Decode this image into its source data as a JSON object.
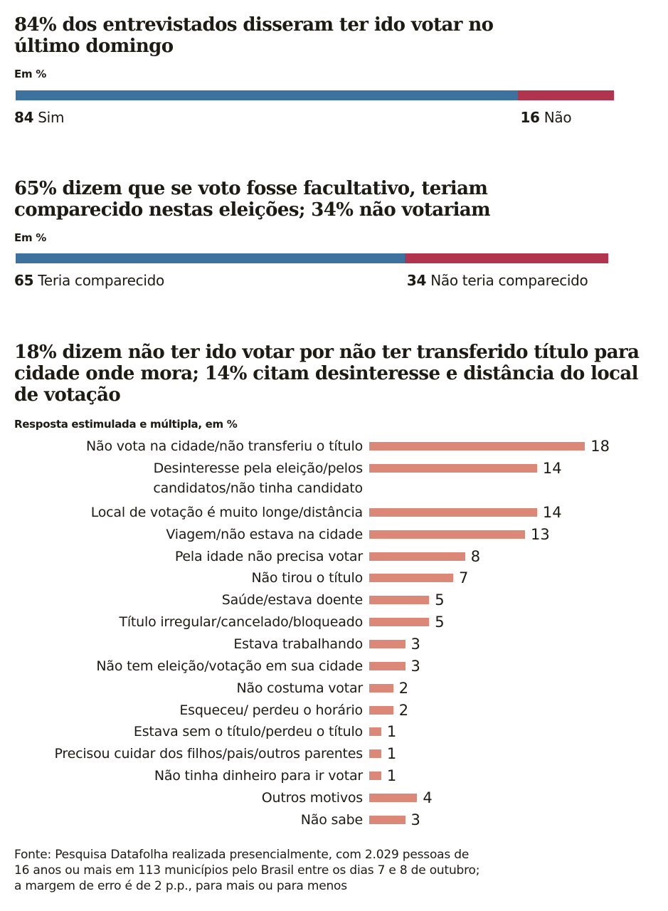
{
  "chart_data": [
    {
      "type": "bar",
      "orientation": "horizontal-stacked",
      "title": "84% dos entrevistados disseram ter ido votar no último domingo",
      "subtitle": "Em %",
      "series": [
        {
          "name": "Sim",
          "values": [
            84
          ]
        },
        {
          "name": "Não",
          "values": [
            16
          ]
        }
      ],
      "colors": [
        "#3d729f",
        "#b1344f"
      ]
    },
    {
      "type": "bar",
      "orientation": "horizontal-stacked",
      "title": "65% dizem que se voto fosse facultativo, teriam comparecido nestas eleições; 34% não votariam",
      "subtitle": "Em %",
      "series": [
        {
          "name": "Teria comparecido",
          "values": [
            65
          ]
        },
        {
          "name": "Não teria comparecido",
          "values": [
            34
          ]
        }
      ],
      "colors": [
        "#3d729f",
        "#b1344f"
      ]
    },
    {
      "type": "bar",
      "orientation": "horizontal",
      "title": "18% dizem não ter ido votar por não ter transferido título para cidade onde mora; 14% citam desinteresse e distância do local de votação",
      "subtitle": "Resposta estimulada e múltipla, em %",
      "color": "#db8878",
      "categories": [
        "Não vota na cidade/não transferiu o título",
        "Desinteresse pela eleição/pelos\ncandidatos/não tinha candidato",
        "Local de votação é muito longe/distância",
        "Viagem/não estava na cidade",
        "Pela idade não precisa votar",
        "Não tirou o título",
        "Saúde/estava doente",
        "Título irregular/cancelado/bloqueado",
        "Estava trabalhando",
        "Não tem eleição/votação em sua cidade",
        "Não costuma votar",
        "Esqueceu/ perdeu o horário",
        "Estava sem o título/perdeu o título",
        "Precisou cuidar dos filhos/pais/outros parentes",
        "Não tinha dinheiro para ir votar",
        "Outros motivos",
        "Não sabe"
      ],
      "values": [
        18,
        14,
        14,
        13,
        8,
        7,
        5,
        5,
        3,
        3,
        2,
        2,
        1,
        1,
        1,
        4,
        3
      ]
    }
  ],
  "footer": "Fonte: Pesquisa Datafolha realizada presencialmente, com 2.029 pessoas de\n16 anos ou mais em 113 municípios pelo Brasil entre os dias 7 e 8 de outubro;\na margem de erro é de 2 p.p., para mais ou para menos"
}
